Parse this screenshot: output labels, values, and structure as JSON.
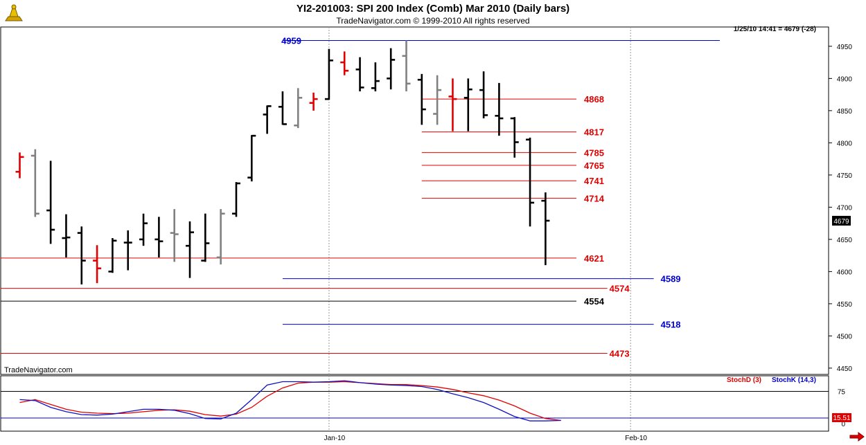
{
  "header": {
    "title": "YI2-201003:  SPI 200 Index (Comb) Mar 2010  (Daily bars)",
    "subtitle": "TradeNavigator.com © 1999-2010 All rights reserved",
    "quote": "1/25/10 14:41 = 4679 (-28)"
  },
  "brand": "TradeNavigator.com",
  "legend": {
    "stoch_d": "StochD (3)",
    "stoch_k": "StochK (14,3)"
  },
  "colors": {
    "up": "#000000",
    "down": "#e00000",
    "neutral": "#808080",
    "red_line": "#e00000",
    "blue_line": "#0000cc",
    "black_line": "#000000"
  },
  "chart_data": {
    "type": "ohlc",
    "title": "YI2-201003:  SPI 200 Index (Comb) Mar 2010  (Daily bars)",
    "ylim": [
      4440,
      4970
    ],
    "y_ticks": [
      4450,
      4500,
      4550,
      4600,
      4650,
      4700,
      4750,
      4800,
      4850,
      4900,
      4950
    ],
    "x_labels": [
      {
        "label": "Jan-10",
        "bar_index": 20
      },
      {
        "label": "Feb-10",
        "bar_index": 39.5
      }
    ],
    "last_price": "4679",
    "bars": [
      {
        "o": 4755,
        "h": 4785,
        "l": 4745,
        "c": 4778,
        "color": "down"
      },
      {
        "o": 4780,
        "h": 4790,
        "l": 4685,
        "c": 4690,
        "color": "neutral"
      },
      {
        "o": 4695,
        "h": 4772,
        "l": 4643,
        "c": 4665,
        "color": "up"
      },
      {
        "o": 4652,
        "h": 4689,
        "l": 4622,
        "c": 4653,
        "color": "up"
      },
      {
        "o": 4660,
        "h": 4670,
        "l": 4580,
        "c": 4617,
        "color": "up"
      },
      {
        "o": 4617,
        "h": 4641,
        "l": 4582,
        "c": 4605,
        "color": "down"
      },
      {
        "o": 4600,
        "h": 4652,
        "l": 4598,
        "c": 4648,
        "color": "up"
      },
      {
        "o": 4645,
        "h": 4664,
        "l": 4602,
        "c": 4645,
        "color": "up"
      },
      {
        "o": 4650,
        "h": 4690,
        "l": 4640,
        "c": 4675,
        "color": "up"
      },
      {
        "o": 4650,
        "h": 4685,
        "l": 4622,
        "c": 4647,
        "color": "up"
      },
      {
        "o": 4660,
        "h": 4697,
        "l": 4615,
        "c": 4658,
        "color": "neutral"
      },
      {
        "o": 4640,
        "h": 4678,
        "l": 4590,
        "c": 4661,
        "color": "up"
      },
      {
        "o": 4617,
        "h": 4690,
        "l": 4615,
        "c": 4644,
        "color": "up"
      },
      {
        "o": 4622,
        "h": 4697,
        "l": 4611,
        "c": 4690,
        "color": "neutral"
      },
      {
        "o": 4690,
        "h": 4739,
        "l": 4685,
        "c": 4737,
        "color": "up"
      },
      {
        "o": 4746,
        "h": 4812,
        "l": 4740,
        "c": 4811,
        "color": "up"
      },
      {
        "o": 4844,
        "h": 4858,
        "l": 4814,
        "c": 4857,
        "color": "up"
      },
      {
        "o": 4856,
        "h": 4880,
        "l": 4828,
        "c": 4829,
        "color": "up"
      },
      {
        "o": 4827,
        "h": 4885,
        "l": 4823,
        "c": 4870,
        "color": "neutral"
      },
      {
        "o": 4862,
        "h": 4878,
        "l": 4850,
        "c": 4868,
        "color": "down"
      },
      {
        "o": 4868,
        "h": 4946,
        "l": 4867,
        "c": 4928,
        "color": "up"
      },
      {
        "o": 4925,
        "h": 4942,
        "l": 4905,
        "c": 4912,
        "color": "down"
      },
      {
        "o": 4914,
        "h": 4933,
        "l": 4880,
        "c": 4886,
        "color": "up"
      },
      {
        "o": 4885,
        "h": 4925,
        "l": 4880,
        "c": 4896,
        "color": "up"
      },
      {
        "o": 4900,
        "h": 4947,
        "l": 4883,
        "c": 4929,
        "color": "up"
      },
      {
        "o": 4935,
        "h": 4959,
        "l": 4880,
        "c": 4892,
        "color": "neutral"
      },
      {
        "o": 4898,
        "h": 4907,
        "l": 4828,
        "c": 4852,
        "color": "up"
      },
      {
        "o": 4845,
        "h": 4905,
        "l": 4828,
        "c": 4882,
        "color": "neutral"
      },
      {
        "o": 4872,
        "h": 4900,
        "l": 4818,
        "c": 4868,
        "color": "down"
      },
      {
        "o": 4870,
        "h": 4900,
        "l": 4818,
        "c": 4883,
        "color": "up"
      },
      {
        "o": 4882,
        "h": 4911,
        "l": 4838,
        "c": 4843,
        "color": "up"
      },
      {
        "o": 4842,
        "h": 4893,
        "l": 4811,
        "c": 4838,
        "color": "up"
      },
      {
        "o": 4838,
        "h": 4840,
        "l": 4777,
        "c": 4801,
        "color": "up"
      },
      {
        "o": 4805,
        "h": 4808,
        "l": 4670,
        "c": 4707,
        "color": "up"
      },
      {
        "o": 4710,
        "h": 4723,
        "l": 4610,
        "c": 4679,
        "color": "up"
      }
    ],
    "levels": [
      {
        "value": 4959,
        "label": "4959",
        "color": "blue",
        "start_bar": 17,
        "end_bar": 46
      },
      {
        "value": 4868,
        "label": "4868",
        "color": "red",
        "start_bar": 26,
        "end_bar": 36
      },
      {
        "value": 4817,
        "label": "4817",
        "color": "red",
        "start_bar": 26,
        "end_bar": 36
      },
      {
        "value": 4785,
        "label": "4785",
        "color": "red",
        "start_bar": 26,
        "end_bar": 36
      },
      {
        "value": 4765,
        "label": "4765",
        "color": "red",
        "start_bar": 26,
        "end_bar": 36
      },
      {
        "value": 4741,
        "label": "4741",
        "color": "red",
        "start_bar": 26,
        "end_bar": 36
      },
      {
        "value": 4714,
        "label": "4714",
        "color": "red",
        "start_bar": 26,
        "end_bar": 36
      },
      {
        "value": 4621,
        "label": "4621",
        "color": "red",
        "start_bar": -1,
        "end_bar": 36
      },
      {
        "value": 4589,
        "label": "4589",
        "color": "blue",
        "start_bar": 17,
        "end_bar": 41
      },
      {
        "value": 4574,
        "label": "4574",
        "color": "red",
        "start_bar": -1,
        "end_bar": 38
      },
      {
        "value": 4554,
        "label": "4554",
        "color": "black",
        "start_bar": -1,
        "end_bar": 36
      },
      {
        "value": 4518,
        "label": "4518",
        "color": "blue",
        "start_bar": 17,
        "end_bar": 41
      },
      {
        "value": 4473,
        "label": "4473",
        "color": "red",
        "start_bar": -1,
        "end_bar": 38
      }
    ],
    "stochastic": {
      "ylim": [
        0,
        100
      ],
      "y_ticks": [
        75,
        0
      ],
      "guides": [
        75,
        15
      ],
      "last_value": "15.51",
      "series": [
        {
          "name": "StochD (3)",
          "color": "#e00000",
          "values": [
            52,
            58,
            48,
            38,
            32,
            30,
            29,
            30,
            33,
            36,
            37,
            34,
            27,
            24,
            28,
            42,
            65,
            82,
            92,
            94,
            94,
            95,
            93,
            91,
            89,
            89,
            87,
            84,
            79,
            72,
            66,
            57,
            45,
            30,
            19,
            15
          ]
        },
        {
          "name": "StochK (14,3)",
          "color": "#1010c0",
          "values": [
            58,
            56,
            42,
            33,
            27,
            26,
            28,
            33,
            38,
            38,
            36,
            29,
            19,
            18,
            30,
            58,
            88,
            95,
            95,
            94,
            95,
            97,
            93,
            90,
            88,
            87,
            85,
            79,
            70,
            62,
            52,
            38,
            23,
            14,
            14,
            15
          ]
        }
      ]
    }
  }
}
